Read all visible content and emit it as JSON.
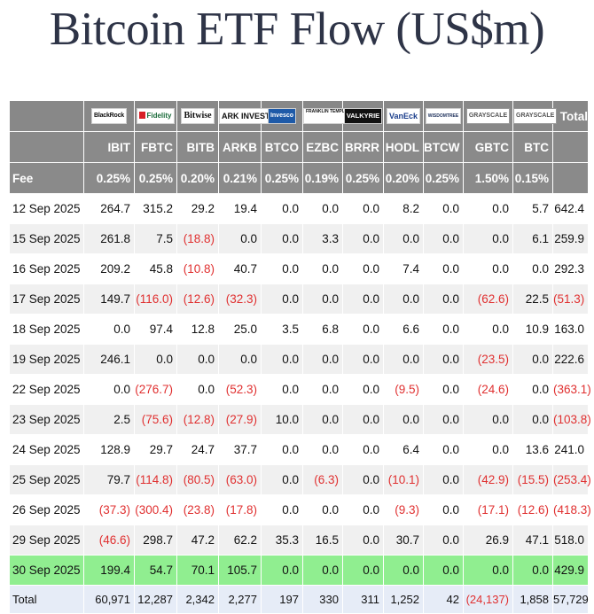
{
  "title": "Bitcoin ETF Flow (US$m)",
  "header": {
    "logos": [
      {
        "name": "blackrock-logo",
        "text": "BlackRock"
      },
      {
        "name": "fidelity-logo",
        "text": "Fidelity"
      },
      {
        "name": "bitwise-logo",
        "text": "Bitwise"
      },
      {
        "name": "ark-logo",
        "text": "ARK INVEST"
      },
      {
        "name": "invesco-logo",
        "text": "Invesco"
      },
      {
        "name": "franklin-logo",
        "text": "FRANKLIN TEMPLETON"
      },
      {
        "name": "valkyrie-logo",
        "text": "VALKYRIE"
      },
      {
        "name": "vaneck-logo",
        "text": "VanEck"
      },
      {
        "name": "wisdomtree-logo",
        "text": "WISDOMTREE"
      },
      {
        "name": "grayscale-logo",
        "text": "GRAYSCALE"
      },
      {
        "name": "grayscale-logo-2",
        "text": "GRAYSCALE"
      }
    ],
    "total_label": "Total",
    "tickers": [
      "IBIT",
      "FBTC",
      "BITB",
      "ARKB",
      "BTCO",
      "EZBC",
      "BRRR",
      "HODL",
      "BTCW",
      "GBTC",
      "BTC"
    ],
    "fee_label": "Fee",
    "fees": [
      "0.25%",
      "0.25%",
      "0.20%",
      "0.21%",
      "0.25%",
      "0.19%",
      "0.25%",
      "0.20%",
      "0.25%",
      "1.50%",
      "0.15%"
    ]
  },
  "rows": [
    {
      "date": "12 Sep 2025",
      "values": [
        "264.7",
        "315.2",
        "29.2",
        "19.4",
        "0.0",
        "0.0",
        "0.0",
        "8.2",
        "0.0",
        "0.0",
        "5.7"
      ],
      "total": "642.4"
    },
    {
      "date": "15 Sep 2025",
      "values": [
        "261.8",
        "7.5",
        "(18.8)",
        "0.0",
        "0.0",
        "3.3",
        "0.0",
        "0.0",
        "0.0",
        "0.0",
        "6.1"
      ],
      "total": "259.9"
    },
    {
      "date": "16 Sep 2025",
      "values": [
        "209.2",
        "45.8",
        "(10.8)",
        "40.7",
        "0.0",
        "0.0",
        "0.0",
        "7.4",
        "0.0",
        "0.0",
        "0.0"
      ],
      "total": "292.3"
    },
    {
      "date": "17 Sep 2025",
      "values": [
        "149.7",
        "(116.0)",
        "(12.6)",
        "(32.3)",
        "0.0",
        "0.0",
        "0.0",
        "0.0",
        "0.0",
        "(62.6)",
        "22.5"
      ],
      "total": "(51.3)"
    },
    {
      "date": "18 Sep 2025",
      "values": [
        "0.0",
        "97.4",
        "12.8",
        "25.0",
        "3.5",
        "6.8",
        "0.0",
        "6.6",
        "0.0",
        "0.0",
        "10.9"
      ],
      "total": "163.0"
    },
    {
      "date": "19 Sep 2025",
      "values": [
        "246.1",
        "0.0",
        "0.0",
        "0.0",
        "0.0",
        "0.0",
        "0.0",
        "0.0",
        "0.0",
        "(23.5)",
        "0.0"
      ],
      "total": "222.6"
    },
    {
      "date": "22 Sep 2025",
      "values": [
        "0.0",
        "(276.7)",
        "0.0",
        "(52.3)",
        "0.0",
        "0.0",
        "0.0",
        "(9.5)",
        "0.0",
        "(24.6)",
        "0.0"
      ],
      "total": "(363.1)"
    },
    {
      "date": "23 Sep 2025",
      "values": [
        "2.5",
        "(75.6)",
        "(12.8)",
        "(27.9)",
        "10.0",
        "0.0",
        "0.0",
        "0.0",
        "0.0",
        "0.0",
        "0.0"
      ],
      "total": "(103.8)"
    },
    {
      "date": "24 Sep 2025",
      "values": [
        "128.9",
        "29.7",
        "24.7",
        "37.7",
        "0.0",
        "0.0",
        "0.0",
        "6.4",
        "0.0",
        "0.0",
        "13.6"
      ],
      "total": "241.0"
    },
    {
      "date": "25 Sep 2025",
      "values": [
        "79.7",
        "(114.8)",
        "(80.5)",
        "(63.0)",
        "0.0",
        "(6.3)",
        "0.0",
        "(10.1)",
        "0.0",
        "(42.9)",
        "(15.5)"
      ],
      "total": "(253.4)"
    },
    {
      "date": "26 Sep 2025",
      "values": [
        "(37.3)",
        "(300.4)",
        "(23.8)",
        "(17.8)",
        "0.0",
        "0.0",
        "0.0",
        "(9.3)",
        "0.0",
        "(17.1)",
        "(12.6)"
      ],
      "total": "(418.3)"
    },
    {
      "date": "29 Sep 2025",
      "values": [
        "(46.6)",
        "298.7",
        "47.2",
        "62.2",
        "35.3",
        "16.5",
        "0.0",
        "30.7",
        "0.0",
        "26.9",
        "47.1"
      ],
      "total": "518.0"
    },
    {
      "date": "30 Sep 2025",
      "values": [
        "199.4",
        "54.7",
        "70.1",
        "105.7",
        "0.0",
        "0.0",
        "0.0",
        "0.0",
        "0.0",
        "0.0",
        "0.0"
      ],
      "total": "429.9",
      "highlight": true
    }
  ],
  "totals": {
    "label": "Total",
    "values": [
      "60,971",
      "12,287",
      "2,342",
      "2,277",
      "197",
      "330",
      "311",
      "1,252",
      "42",
      "(24,137)",
      "1,858"
    ],
    "total": "57,729"
  },
  "colors": {
    "header_bg": "#8a8a8a",
    "row_alt_bg": "#f0f0f0",
    "highlight_bg": "#90ee90",
    "totals_bg": "#e6ecf7",
    "negative_text": "#e03030",
    "title_text": "#2e3447"
  }
}
